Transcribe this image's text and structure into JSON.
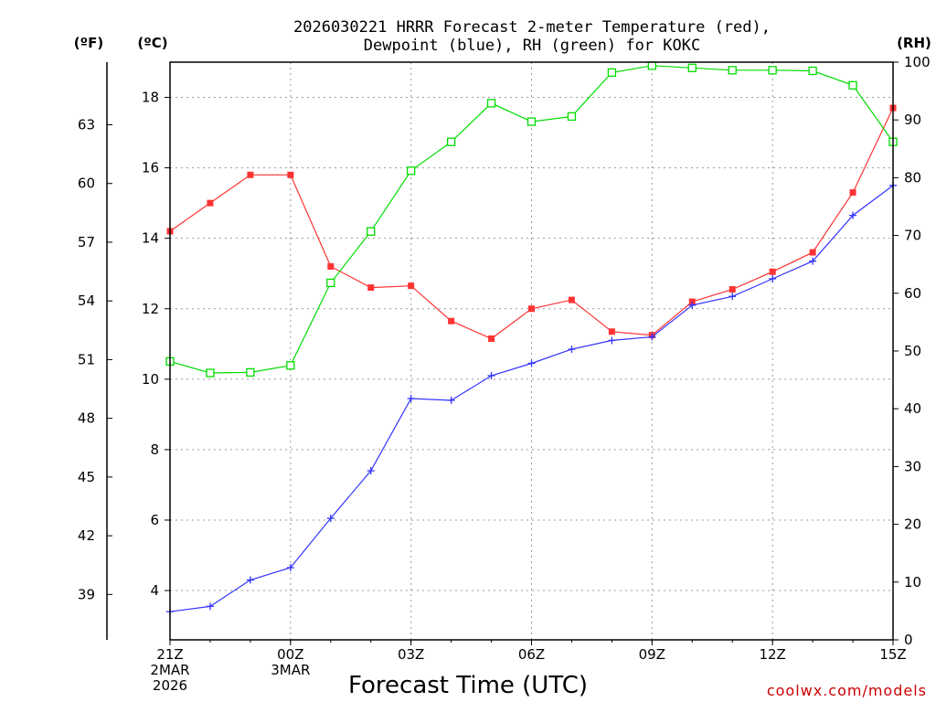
{
  "chart_data": {
    "type": "line",
    "title": [
      "2026030221 HRRR Forecast 2-meter Temperature (red),",
      "Dewpoint (blue), RH (green) for KOKC"
    ],
    "xlabel": "Forecast Time (UTC)",
    "credit": "coolwx.com/models",
    "units": {
      "f": "(ºF)",
      "c": "(ºC)",
      "rh": "(RH)"
    },
    "x": [
      0,
      1,
      2,
      3,
      4,
      5,
      6,
      7,
      8,
      9,
      10,
      11,
      12,
      13,
      14,
      15,
      16,
      17,
      18
    ],
    "x_ticks": [
      {
        "x": 0,
        "lines": [
          "21Z",
          "2MAR",
          "2026"
        ]
      },
      {
        "x": 3,
        "lines": [
          "00Z",
          "3MAR"
        ]
      },
      {
        "x": 6,
        "lines": [
          "03Z"
        ]
      },
      {
        "x": 9,
        "lines": [
          "06Z"
        ]
      },
      {
        "x": 12,
        "lines": [
          "09Z"
        ]
      },
      {
        "x": 15,
        "lines": [
          "12Z"
        ]
      },
      {
        "x": 18,
        "lines": [
          "15Z"
        ]
      }
    ],
    "xlim": [
      0,
      18
    ],
    "ylim_c": [
      2.6,
      19.0
    ],
    "ylim_rh": [
      0,
      100
    ],
    "c_ticks": [
      4,
      6,
      8,
      10,
      12,
      14,
      16,
      18
    ],
    "f_ticks": [
      39,
      42,
      45,
      48,
      51,
      54,
      57,
      60,
      63
    ],
    "rh_ticks": [
      0,
      10,
      20,
      30,
      40,
      50,
      60,
      70,
      80,
      90,
      100
    ],
    "series": [
      {
        "name": "Temperature",
        "color": "#ff3333",
        "axis": "c",
        "marker": "filled-square",
        "values": [
          14.2,
          15.0,
          15.8,
          15.8,
          13.2,
          12.6,
          12.65,
          11.65,
          11.15,
          12.0,
          12.25,
          11.35,
          11.25,
          12.2,
          12.55,
          13.05,
          13.6,
          15.3,
          17.7
        ]
      },
      {
        "name": "Dewpoint",
        "color": "#3333ff",
        "axis": "c",
        "marker": "plus",
        "values": [
          3.4,
          3.55,
          4.3,
          4.65,
          6.05,
          7.4,
          9.45,
          9.4,
          10.1,
          10.45,
          10.85,
          11.1,
          11.2,
          12.1,
          12.35,
          12.85,
          13.35,
          14.65,
          15.5
        ]
      },
      {
        "name": "RH",
        "color": "#00dd00",
        "axis": "rh",
        "marker": "open-square",
        "values": [
          48.2,
          46.2,
          46.3,
          47.5,
          61.8,
          70.7,
          81.2,
          86.2,
          92.9,
          89.7,
          90.6,
          98.2,
          99.4,
          99.0,
          98.6,
          98.6,
          98.5,
          96.0,
          86.2
        ]
      }
    ]
  }
}
